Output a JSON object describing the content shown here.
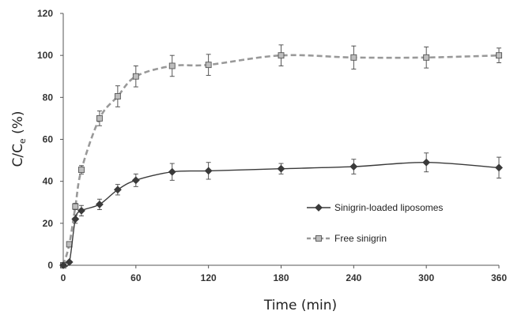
{
  "chart_data": {
    "type": "line",
    "xlabel": "Time (min)",
    "ylabel": {
      "main": "C/C",
      "subscript": "e",
      "suffix": " (%)"
    },
    "xlim": [
      0,
      360
    ],
    "ylim": [
      0,
      120
    ],
    "xticks": [
      0,
      60,
      120,
      180,
      240,
      300,
      360
    ],
    "yticks": [
      0,
      20,
      40,
      60,
      80,
      100,
      120
    ],
    "grid": false,
    "legend_position": "right",
    "series": [
      {
        "name": "Sinigrin-loaded liposomes",
        "marker": "diamond",
        "line_style": "solid",
        "color": "#3a3a3a",
        "x": [
          0,
          5,
          10,
          15,
          30,
          45,
          60,
          90,
          120,
          180,
          240,
          300,
          360
        ],
        "y": [
          0,
          1.5,
          22,
          26,
          29,
          36,
          40.5,
          44.5,
          45,
          46,
          47,
          49,
          46.5
        ],
        "err": [
          0,
          0.5,
          2,
          2.5,
          2.5,
          2.5,
          3,
          4,
          4,
          2.5,
          3.5,
          4.5,
          5
        ]
      },
      {
        "name": "Free sinigrin",
        "marker": "square",
        "line_style": "dashed",
        "color": "#999999",
        "x": [
          0,
          5,
          10,
          15,
          30,
          45,
          60,
          90,
          120,
          180,
          240,
          300,
          360
        ],
        "y": [
          0,
          10,
          28,
          45.5,
          70,
          80.5,
          90,
          95,
          95.5,
          100,
          99,
          99,
          100
        ],
        "err": [
          0,
          0.5,
          1.5,
          2,
          3.5,
          5,
          5,
          5,
          5,
          5,
          5.5,
          5,
          3.5
        ]
      }
    ]
  }
}
